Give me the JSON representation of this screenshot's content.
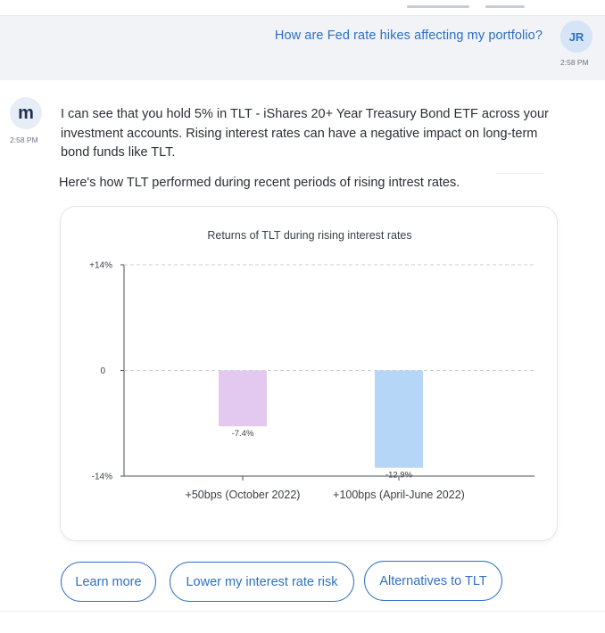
{
  "conversation": {
    "user_message": {
      "text": "How are Fed rate hikes affecting my portfolio?",
      "avatar_initials": "JR",
      "time": "2:58 PM"
    },
    "bot_message": {
      "avatar_letter": "m",
      "time": "2:58 PM",
      "paragraph_1": "I can see that you hold 5% in TLT - iShares 20+ Year Treasury Bond ETF across your investment accounts. Rising interest rates can have a negative impact on long-term bond funds like TLT.",
      "paragraph_2": "Here's how TLT performed during recent periods of rising intrest rates."
    }
  },
  "chart_data": {
    "type": "bar",
    "title": "Returns of TLT during rising interest rates",
    "categories": [
      "+50bps (October 2022)",
      "+100bps (April-June 2022)"
    ],
    "values": [
      -7.4,
      -12.9
    ],
    "value_labels": [
      "-7.4%",
      "-12.9%"
    ],
    "ylim": [
      -14,
      14
    ],
    "y_ticks": [
      {
        "value": 14,
        "label": "+14%"
      },
      {
        "value": 0,
        "label": "0"
      },
      {
        "value": -14,
        "label": "-14%"
      }
    ],
    "bar_colors": [
      "#e3c9ef",
      "#b5d6f6"
    ],
    "grid": "dashed at top and zero",
    "legend": "none"
  },
  "quick_replies": {
    "learn_more": "Learn more",
    "lower_risk": "Lower my interest rate risk",
    "alternatives": "Alternatives to TLT"
  }
}
